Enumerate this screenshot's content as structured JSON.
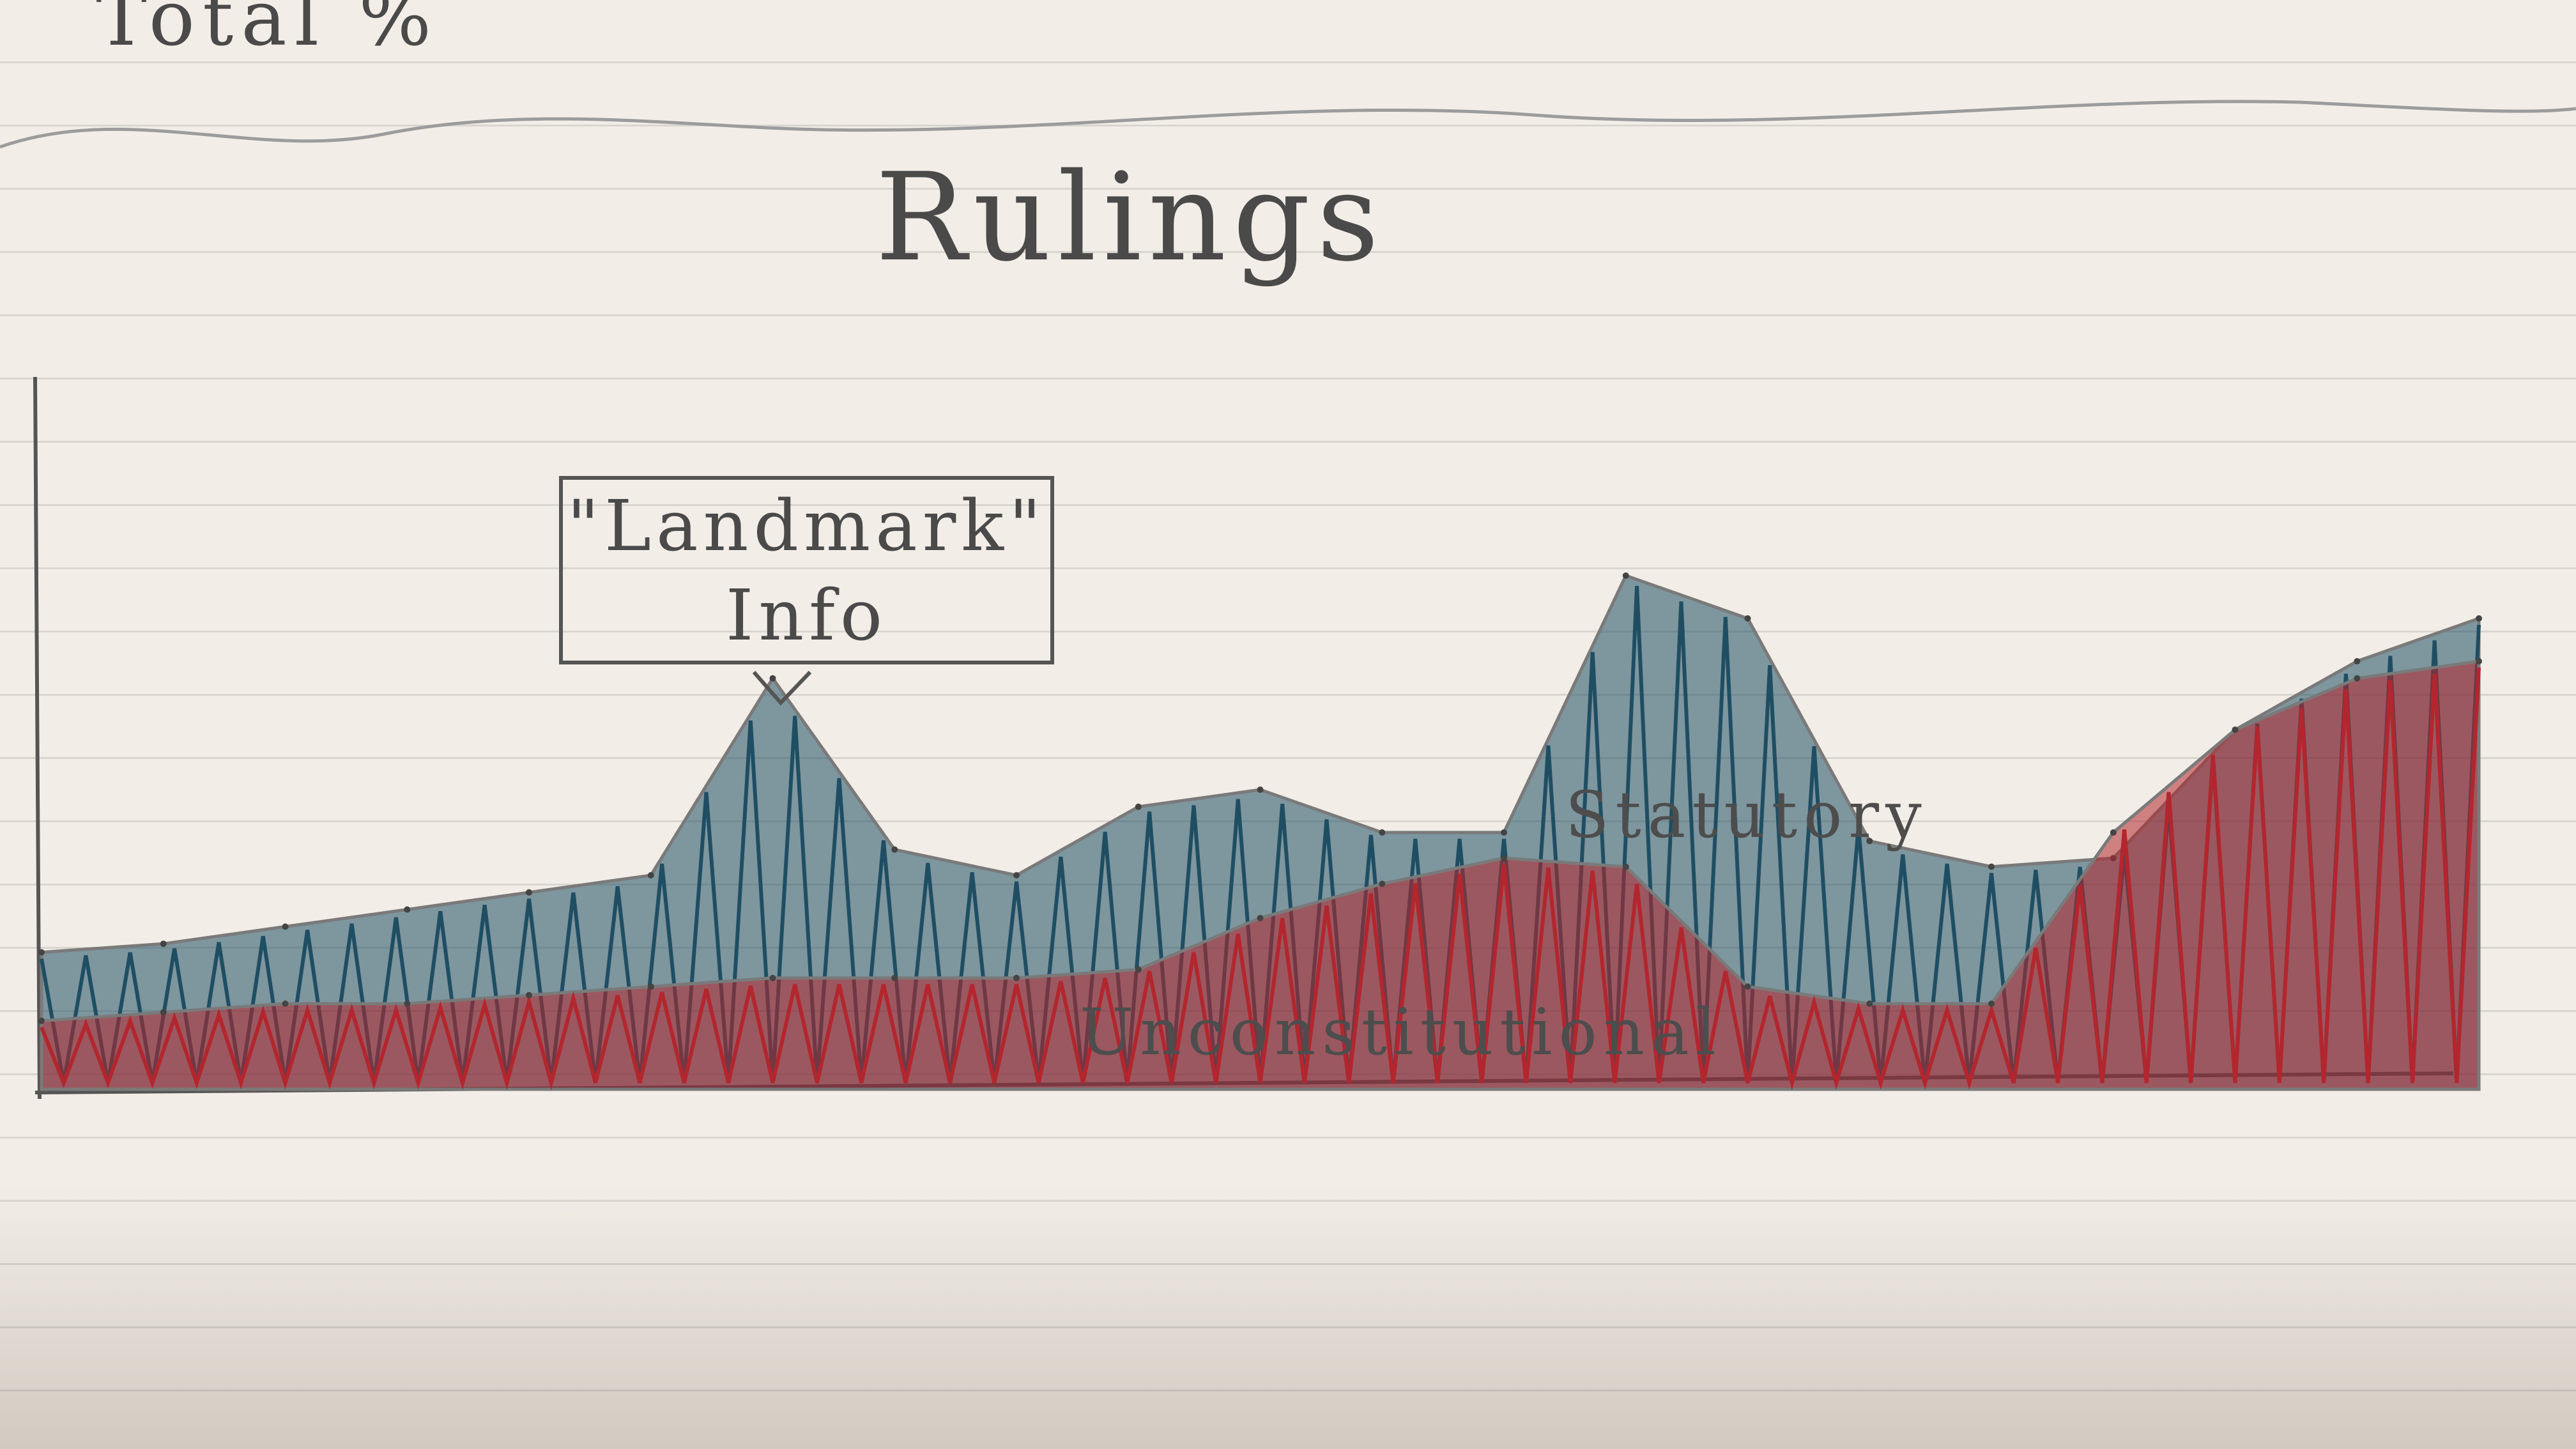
{
  "header": {
    "total_label": "Total %",
    "title": "Rulings"
  },
  "annotation": {
    "line1": "\"Landmark\"",
    "line2": "Info"
  },
  "colors": {
    "statutory": "#1f4e63",
    "unconstitutional": "#b3262e",
    "pencil": "#7a7a7a",
    "paper": "#f2eee7"
  },
  "chart_data": {
    "type": "area",
    "title": "Rulings",
    "ylabel": "Total %",
    "xlabel": "",
    "grid": false,
    "x": [
      0,
      5,
      10,
      15,
      20,
      25,
      30,
      35,
      40,
      45,
      50,
      55,
      60,
      65,
      70,
      75,
      80,
      85,
      90,
      95,
      100
    ],
    "series": [
      {
        "name": "Unconstitutional",
        "values": [
          8,
          9,
          10,
          10,
          11,
          12,
          13,
          13,
          13,
          14,
          20,
          24,
          27,
          26,
          12,
          10,
          10,
          30,
          42,
          48,
          50
        ]
      },
      {
        "name": "Statutory",
        "values": [
          16,
          17,
          19,
          21,
          23,
          25,
          48,
          28,
          25,
          33,
          35,
          30,
          30,
          60,
          55,
          29,
          26,
          27,
          42,
          50,
          55
        ]
      }
    ],
    "annotations": [
      {
        "text": "\"Landmark\" Info",
        "x": 30
      }
    ]
  }
}
